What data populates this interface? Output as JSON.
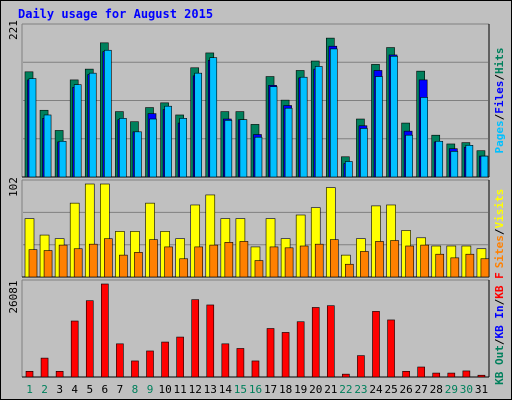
{
  "title": "Daily usage for August 2015",
  "days": [
    "1",
    "2",
    "3",
    "4",
    "5",
    "6",
    "7",
    "8",
    "9",
    "10",
    "11",
    "12",
    "13",
    "14",
    "15",
    "16",
    "17",
    "18",
    "19",
    "20",
    "21",
    "22",
    "23",
    "24",
    "25",
    "26",
    "27",
    "28",
    "29",
    "30",
    "31"
  ],
  "weekend_days": [
    "1",
    "2",
    "8",
    "9",
    "15",
    "16",
    "22",
    "23",
    "29",
    "30"
  ],
  "colors": {
    "hits": "#00805c",
    "files": "#0000ff",
    "pages": "#00c0ff",
    "visits": "#ffff00",
    "sites": "#ff8000",
    "kb_f": "#ff0000",
    "kb_in": "#0000ff",
    "kb_out": "#00805c",
    "weekday_tick": "#000000",
    "weekend_tick": "#00805c"
  },
  "chart_data": [
    {
      "type": "bar",
      "ymax_label": "221",
      "ylim": [
        0,
        221
      ],
      "legend": [
        {
          "text": "Hits",
          "color": "#00805c"
        },
        {
          "text": "Files",
          "color": "#0000ff"
        },
        {
          "text": "Pages",
          "color": "#00c0ff"
        }
      ],
      "series": [
        {
          "name": "Hits",
          "values": [
            156,
            99,
            69,
            144,
            160,
            199,
            97,
            82,
            103,
            110,
            92,
            162,
            184,
            97,
            97,
            78,
            149,
            114,
            158,
            172,
            206,
            30,
            86,
            167,
            192,
            80,
            157,
            62,
            49,
            51,
            39
          ]
        },
        {
          "name": "Files",
          "values": [
            144,
            87,
            52,
            133,
            152,
            186,
            85,
            67,
            94,
            100,
            80,
            150,
            173,
            86,
            85,
            63,
            136,
            106,
            147,
            160,
            194,
            20,
            76,
            158,
            181,
            68,
            144,
            52,
            42,
            44,
            31
          ]
        },
        {
          "name": "Pages",
          "values": [
            146,
            92,
            53,
            137,
            154,
            188,
            87,
            67,
            86,
            105,
            87,
            154,
            177,
            84,
            85,
            59,
            134,
            102,
            148,
            164,
            190,
            23,
            72,
            149,
            179,
            62,
            118,
            53,
            38,
            47,
            31
          ]
        }
      ]
    },
    {
      "type": "bar",
      "ymax_label": "102",
      "ylim": [
        0,
        102
      ],
      "legend": [
        {
          "text": "Visits",
          "color": "#ffff00"
        },
        {
          "text": "Sites",
          "color": "#ff8000"
        }
      ],
      "series": [
        {
          "name": "Visits",
          "values": [
            64,
            46,
            42,
            81,
            102,
            102,
            50,
            50,
            81,
            50,
            42,
            79,
            90,
            64,
            64,
            33,
            64,
            42,
            68,
            76,
            98,
            24,
            42,
            78,
            79,
            51,
            43,
            34,
            34,
            34,
            31
          ]
        },
        {
          "name": "Sites",
          "values": [
            30,
            29,
            35,
            31,
            36,
            42,
            24,
            27,
            41,
            33,
            20,
            33,
            35,
            38,
            39,
            18,
            33,
            32,
            34,
            36,
            41,
            14,
            28,
            39,
            40,
            34,
            35,
            25,
            21,
            25,
            20
          ]
        }
      ]
    },
    {
      "type": "bar",
      "ymax_label": "26081",
      "ylim": [
        0,
        26081
      ],
      "legend": [
        {
          "text": "KB F",
          "color": "#ff0000"
        },
        {
          "text": "KB In",
          "color": "#0000ff"
        },
        {
          "text": "KB Out",
          "color": "#00805c"
        }
      ],
      "series": [
        {
          "name": "KB F",
          "values": [
            1600,
            5300,
            1600,
            15700,
            21400,
            26081,
            9300,
            4500,
            7300,
            9800,
            11200,
            21700,
            20200,
            9300,
            8000,
            4500,
            13600,
            12500,
            15500,
            19500,
            20000,
            800,
            6000,
            18400,
            16000,
            1600,
            2800,
            1100,
            1100,
            1700,
            500
          ]
        }
      ]
    }
  ]
}
